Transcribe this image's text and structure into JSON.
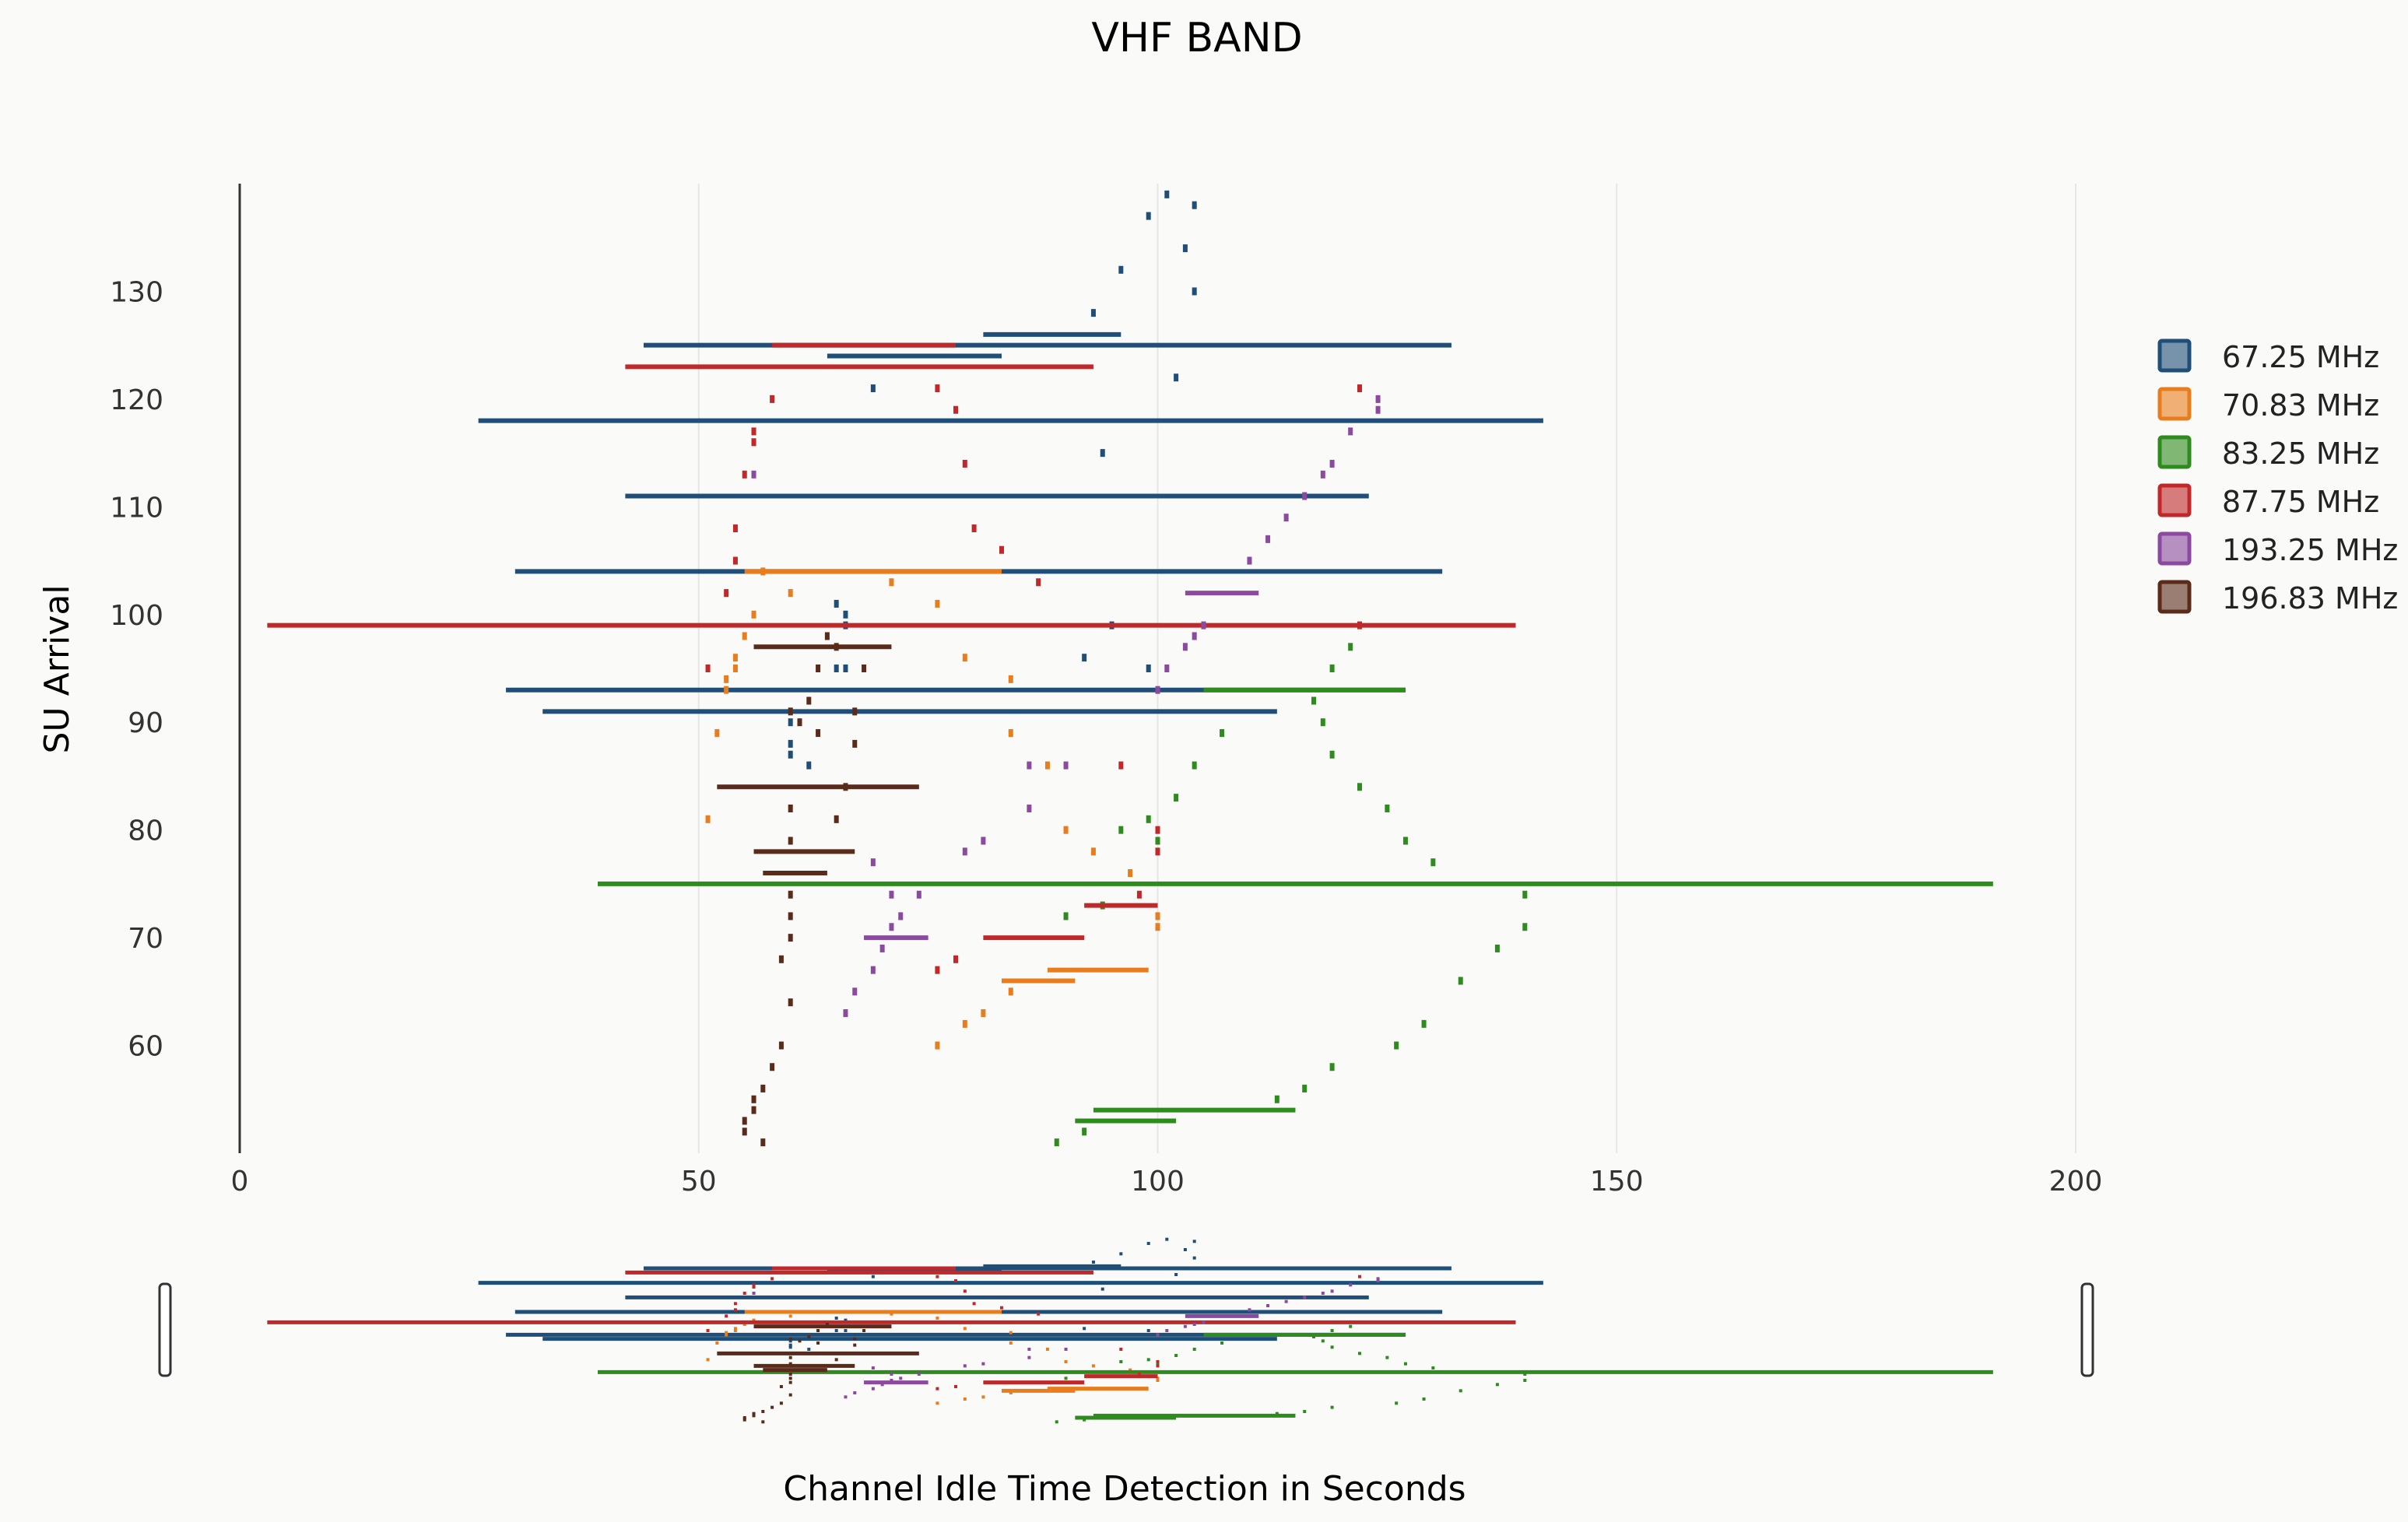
{
  "chart_data": {
    "type": "scatter",
    "title": "VHF  BAND",
    "xlabel": "Channel Idle Time Detection in Seconds",
    "ylabel": "SU Arrival",
    "xlim": [
      0,
      200
    ],
    "ylim": [
      50,
      140
    ],
    "x_ticks": [
      "0",
      "50",
      "100",
      "150",
      "200"
    ],
    "y_ticks": [
      "60",
      "70",
      "80",
      "90",
      "100",
      "110",
      "120",
      "130"
    ],
    "grid": "vertical",
    "legend_position": "right",
    "range_slider": true,
    "series": [
      {
        "name": "67.25 MHz",
        "color": "#1f4e79",
        "intervals": [
          {
            "y": 126,
            "x0": 81,
            "x1": 96
          },
          {
            "y": 125,
            "x0": 44,
            "x1": 132
          },
          {
            "y": 124,
            "x0": 64,
            "x1": 83
          },
          {
            "y": 118,
            "x0": 26,
            "x1": 142
          },
          {
            "y": 111,
            "x0": 42,
            "x1": 123
          },
          {
            "y": 104,
            "x0": 30,
            "x1": 131
          },
          {
            "y": 93,
            "x0": 29,
            "x1": 127
          },
          {
            "y": 91,
            "x0": 33,
            "x1": 113
          }
        ],
        "points": [
          [
            101,
            139
          ],
          [
            99,
            137
          ],
          [
            104,
            138
          ],
          [
            103,
            134
          ],
          [
            96,
            132
          ],
          [
            104,
            130
          ],
          [
            93,
            128
          ],
          [
            102,
            122
          ],
          [
            69,
            121
          ],
          [
            94,
            115
          ],
          [
            65,
            101
          ],
          [
            66,
            100
          ],
          [
            66,
            99
          ],
          [
            95,
            99
          ],
          [
            92,
            96
          ],
          [
            66,
            95
          ],
          [
            65,
            95
          ],
          [
            60,
            90
          ],
          [
            60,
            88
          ],
          [
            60,
            87
          ],
          [
            62,
            86
          ],
          [
            99,
            95
          ]
        ]
      },
      {
        "name": "70.83 MHz",
        "color": "#e87d1e",
        "intervals": [
          {
            "y": 104,
            "x0": 55,
            "x1": 83
          },
          {
            "y": 67,
            "x0": 88,
            "x1": 99
          },
          {
            "y": 66,
            "x0": 83,
            "x1": 91
          }
        ],
        "points": [
          [
            60,
            102
          ],
          [
            56,
            100
          ],
          [
            55,
            98
          ],
          [
            54,
            96
          ],
          [
            54,
            95
          ],
          [
            53,
            94
          ],
          [
            53,
            93
          ],
          [
            52,
            89
          ],
          [
            51,
            81
          ],
          [
            71,
            103
          ],
          [
            76,
            101
          ],
          [
            79,
            96
          ],
          [
            84,
            94
          ],
          [
            84,
            89
          ],
          [
            88,
            86
          ],
          [
            90,
            80
          ],
          [
            93,
            78
          ],
          [
            97,
            76
          ],
          [
            100,
            71
          ],
          [
            100,
            72
          ],
          [
            79,
            62
          ],
          [
            76,
            60
          ],
          [
            81,
            63
          ],
          [
            84,
            65
          ],
          [
            57,
            104
          ]
        ]
      },
      {
        "name": "83.25 MHz",
        "color": "#2e8b1e",
        "intervals": [
          {
            "y": 93,
            "x0": 105,
            "x1": 127
          },
          {
            "y": 75,
            "x0": 39,
            "x1": 191
          },
          {
            "y": 54,
            "x0": 93,
            "x1": 115
          },
          {
            "y": 53,
            "x0": 91,
            "x1": 102
          }
        ],
        "points": [
          [
            89,
            51
          ],
          [
            92,
            52
          ],
          [
            113,
            55
          ],
          [
            116,
            56
          ],
          [
            119,
            58
          ],
          [
            126,
            60
          ],
          [
            129,
            62
          ],
          [
            133,
            66
          ],
          [
            137,
            69
          ],
          [
            140,
            71
          ],
          [
            140,
            74
          ],
          [
            130,
            77
          ],
          [
            127,
            79
          ],
          [
            125,
            82
          ],
          [
            122,
            84
          ],
          [
            119,
            87
          ],
          [
            118,
            90
          ],
          [
            117,
            92
          ],
          [
            119,
            95
          ],
          [
            121,
            97
          ],
          [
            107,
            89
          ],
          [
            104,
            86
          ],
          [
            102,
            83
          ],
          [
            99,
            81
          ],
          [
            100,
            79
          ],
          [
            96,
            80
          ],
          [
            94,
            73
          ],
          [
            90,
            72
          ]
        ]
      },
      {
        "name": " 87.75 MHz",
        "color": "#c0282a",
        "intervals": [
          {
            "y": 125,
            "x0": 58,
            "x1": 78
          },
          {
            "y": 123,
            "x0": 42,
            "x1": 93
          },
          {
            "y": 99,
            "x0": 3,
            "x1": 139
          },
          {
            "y": 73,
            "x0": 92,
            "x1": 100
          },
          {
            "y": 70,
            "x0": 81,
            "x1": 92
          }
        ],
        "points": [
          [
            58,
            120
          ],
          [
            56,
            117
          ],
          [
            56,
            116
          ],
          [
            55,
            113
          ],
          [
            54,
            108
          ],
          [
            54,
            105
          ],
          [
            53,
            102
          ],
          [
            51,
            95
          ],
          [
            76,
            121
          ],
          [
            78,
            119
          ],
          [
            79,
            114
          ],
          [
            80,
            108
          ],
          [
            83,
            106
          ],
          [
            87,
            103
          ],
          [
            96,
            86
          ],
          [
            100,
            80
          ],
          [
            100,
            78
          ],
          [
            98,
            74
          ],
          [
            78,
            68
          ],
          [
            76,
            67
          ],
          [
            122,
            121
          ],
          [
            122,
            99
          ]
        ]
      },
      {
        "name": "193.25 MHz",
        "color": "#8b4a9f",
        "intervals": [
          {
            "y": 102,
            "x0": 103,
            "x1": 111
          },
          {
            "y": 70,
            "x0": 68,
            "x1": 75
          }
        ],
        "points": [
          [
            69,
            77
          ],
          [
            71,
            74
          ],
          [
            72,
            72
          ],
          [
            71,
            71
          ],
          [
            70,
            69
          ],
          [
            69,
            67
          ],
          [
            67,
            65
          ],
          [
            66,
            63
          ],
          [
            74,
            74
          ],
          [
            79,
            78
          ],
          [
            81,
            79
          ],
          [
            86,
            82
          ],
          [
            86,
            86
          ],
          [
            90,
            86
          ],
          [
            100,
            93
          ],
          [
            101,
            95
          ],
          [
            103,
            97
          ],
          [
            104,
            98
          ],
          [
            105,
            99
          ],
          [
            110,
            105
          ],
          [
            112,
            107
          ],
          [
            114,
            109
          ],
          [
            116,
            111
          ],
          [
            118,
            113
          ],
          [
            119,
            114
          ],
          [
            121,
            117
          ],
          [
            124,
            120
          ],
          [
            124,
            119
          ],
          [
            56,
            113
          ]
        ]
      },
      {
        "name": "196.83 MHz",
        "color": "#5a2a1a",
        "intervals": [
          {
            "y": 97,
            "x0": 56,
            "x1": 71
          },
          {
            "y": 84,
            "x0": 52,
            "x1": 74
          },
          {
            "y": 78,
            "x0": 56,
            "x1": 67
          },
          {
            "y": 76,
            "x0": 57,
            "x1": 64
          }
        ],
        "points": [
          [
            57,
            51
          ],
          [
            55,
            52
          ],
          [
            55,
            53
          ],
          [
            56,
            54
          ],
          [
            56,
            55
          ],
          [
            57,
            56
          ],
          [
            58,
            58
          ],
          [
            59,
            60
          ],
          [
            60,
            64
          ],
          [
            59,
            68
          ],
          [
            60,
            70
          ],
          [
            60,
            72
          ],
          [
            60,
            74
          ],
          [
            60,
            79
          ],
          [
            60,
            82
          ],
          [
            65,
            81
          ],
          [
            66,
            84
          ],
          [
            67,
            88
          ],
          [
            63,
            89
          ],
          [
            61,
            90
          ],
          [
            60,
            91
          ],
          [
            62,
            92
          ],
          [
            63,
            95
          ],
          [
            65,
            97
          ],
          [
            64,
            98
          ],
          [
            67,
            91
          ],
          [
            68,
            95
          ]
        ]
      }
    ]
  }
}
